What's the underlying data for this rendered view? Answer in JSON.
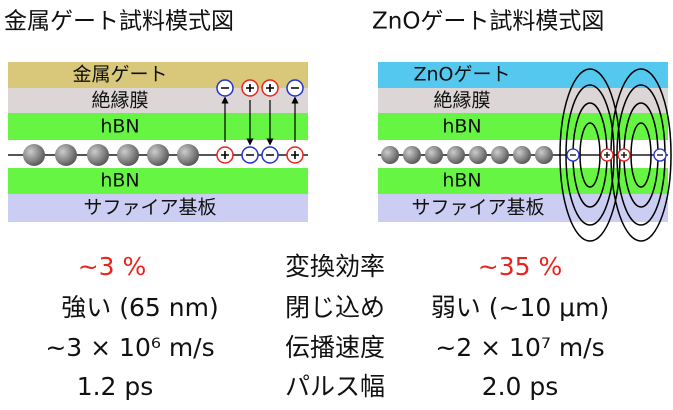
{
  "titles": {
    "metal": "金属ゲート試料模式図",
    "zno": "ZnOゲート試料模式図"
  },
  "left_layers": [
    "金属ゲート",
    "絶縁膜",
    "hBN",
    "hBN",
    "サファイア基板"
  ],
  "right_layers": [
    "ZnOゲート",
    "絶縁膜",
    "hBN",
    "hBN",
    "サファイア基板"
  ],
  "table": {
    "rows": [
      [
        "~3 %",
        "変換効率",
        "~35 %"
      ],
      [
        "強い (65 nm)",
        "閉じ込め",
        "弱い (~10 μm)"
      ],
      [
        "~3 × 10⁶ m/s",
        "伝播速度",
        "~2 × 10⁷ m/s"
      ],
      [
        "1.2 ps",
        "パルス幅",
        "2.0 ps"
      ]
    ]
  }
}
